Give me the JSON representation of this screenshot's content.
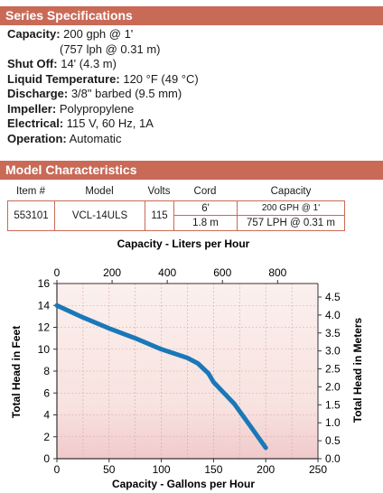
{
  "specs": {
    "header": "Series Specifications",
    "rows": [
      {
        "label": "Capacity:",
        "value": "200 gph @ 1'"
      },
      {
        "label": "",
        "value": "(757 lph @ 0.31 m)"
      },
      {
        "label": "Shut Off:",
        "value": "14' (4.3 m)"
      },
      {
        "label": "Liquid Temperature:",
        "value": "120 °F (49 °C)"
      },
      {
        "label": "Discharge:",
        "value": "3/8\" barbed (9.5 mm)"
      },
      {
        "label": "Impeller:",
        "value": "Polypropylene"
      },
      {
        "label": "Electrical:",
        "value": "115 V, 60 Hz, 1A"
      },
      {
        "label": "Operation:",
        "value": "Automatic"
      }
    ]
  },
  "model": {
    "header": "Model Characteristics",
    "columns": [
      "Item #",
      "Model",
      "Volts",
      "Cord",
      "Capacity"
    ],
    "row": {
      "item": "553101",
      "model": "VCL-14ULS",
      "volts": "115",
      "cord_ft": "6'",
      "cord_m": "1.8 m",
      "capacity_gph": "200 GPH @ 1'",
      "capacity_lph": "757 LPH @ 0.31 m"
    }
  },
  "chart_data": {
    "type": "line",
    "title": "",
    "x_top_label": "Capacity - Liters per Hour",
    "x_top_ticks": [
      0,
      200,
      400,
      600,
      800
    ],
    "xlabel": "Capacity - Gallons per Hour",
    "ylabel": "Total Head in Feet",
    "y_right_label": "Total Head in Meters",
    "xlim": [
      0,
      250
    ],
    "ylim": [
      0,
      16
    ],
    "y_right_ticks": [
      "0.0",
      "0.5",
      "1.0",
      "1.5",
      "2.0",
      "2.5",
      "3.0",
      "3.5",
      "4.0",
      "4.5"
    ],
    "x_ticks": [
      0,
      50,
      100,
      150,
      200,
      250
    ],
    "y_ticks": [
      0,
      2,
      4,
      6,
      8,
      10,
      12,
      14,
      16
    ],
    "grid": true,
    "colors": {
      "line": "#1a78b8",
      "bg_light": "#fbf0ee",
      "bg_dark": "#f0c9cb",
      "axis": "#333333"
    },
    "series": [
      {
        "x": [
          0,
          25,
          50,
          75,
          100,
          125,
          135,
          145,
          150,
          160,
          170,
          185,
          200
        ],
        "y": [
          14,
          12.9,
          11.9,
          11.0,
          10.0,
          9.2,
          8.7,
          7.8,
          7.0,
          6.0,
          5.0,
          3.0,
          1.0
        ]
      }
    ]
  }
}
